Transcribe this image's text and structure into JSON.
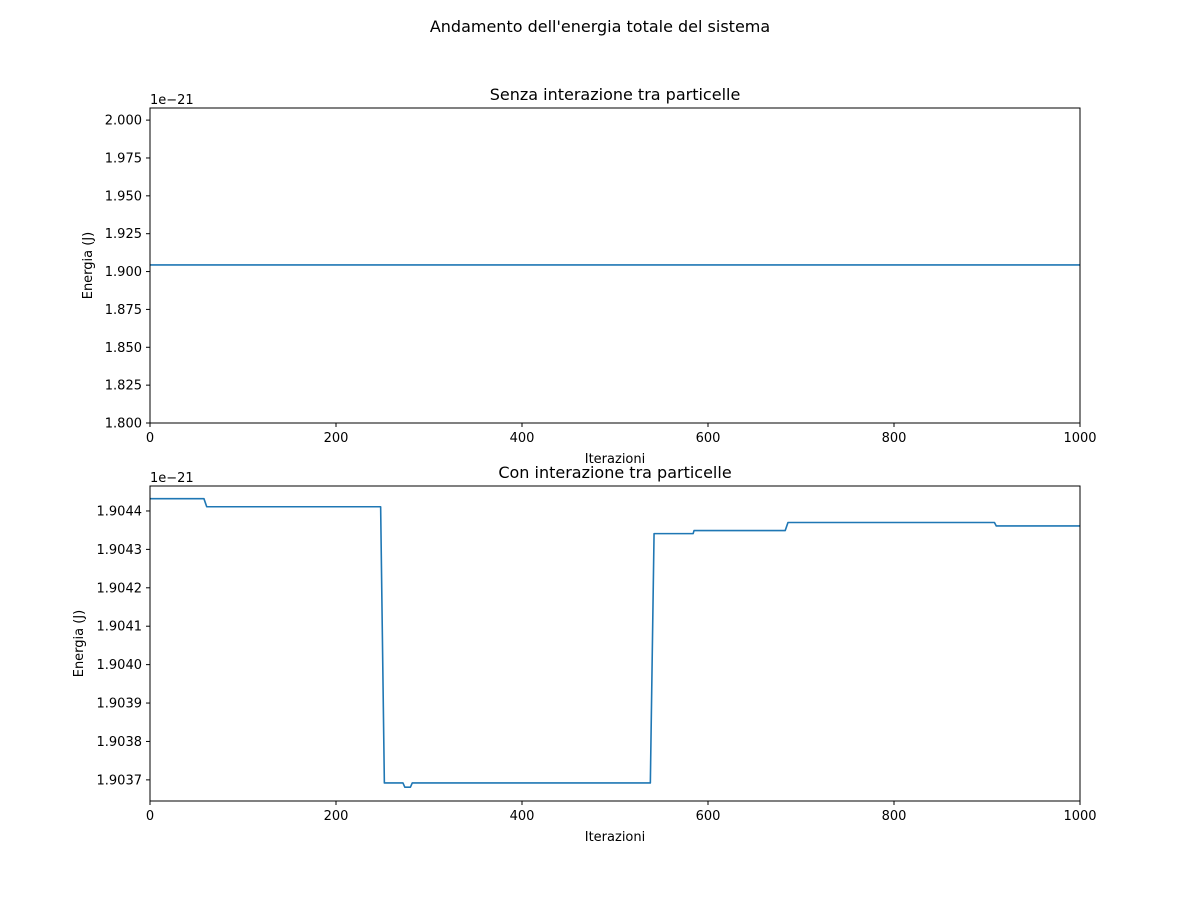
{
  "suptitle": "Andamento dell'energia totale del sistema",
  "chart_data": [
    {
      "type": "line",
      "title": "Senza interazione tra particelle",
      "xlabel": "Iterazioni",
      "ylabel": "Energia (J)",
      "offset_text": "1e−21",
      "xlim": [
        0,
        1000
      ],
      "ylim": [
        1.8,
        2.008
      ],
      "xticks": [
        0,
        200,
        400,
        600,
        800,
        1000
      ],
      "xtick_labels": [
        "0",
        "200",
        "400",
        "600",
        "800",
        "1000"
      ],
      "yticks": [
        1.8,
        1.825,
        1.85,
        1.875,
        1.9,
        1.925,
        1.95,
        1.975,
        2.0
      ],
      "ytick_labels": [
        "1.800",
        "1.825",
        "1.850",
        "1.875",
        "1.900",
        "1.925",
        "1.950",
        "1.975",
        "2.000"
      ],
      "grid": false,
      "line_color": "#1f77b4",
      "series": [
        {
          "x": [
            0,
            1000
          ],
          "y": [
            1.9044,
            1.9044
          ]
        }
      ]
    },
    {
      "type": "line",
      "title": "Con interazione tra particelle",
      "xlabel": "Iterazioni",
      "ylabel": "Energia (J)",
      "offset_text": "1e−21",
      "xlim": [
        0,
        1000
      ],
      "ylim": [
        1.903645,
        1.904465
      ],
      "xticks": [
        0,
        200,
        400,
        600,
        800,
        1000
      ],
      "xtick_labels": [
        "0",
        "200",
        "400",
        "600",
        "800",
        "1000"
      ],
      "yticks": [
        1.9037,
        1.9038,
        1.9039,
        1.904,
        1.9041,
        1.9042,
        1.9043,
        1.9044
      ],
      "ytick_labels": [
        "1.9037",
        "1.9038",
        "1.9039",
        "1.9040",
        "1.9041",
        "1.9042",
        "1.9043",
        "1.9044"
      ],
      "grid": false,
      "line_color": "#1f77b4",
      "series": [
        {
          "x": [
            0,
            58,
            61,
            248,
            252,
            272,
            274,
            280,
            282,
            538,
            542,
            584,
            585,
            683,
            686,
            908,
            910,
            1000
          ],
          "y": [
            1.904432,
            1.904432,
            1.904411,
            1.904411,
            1.903692,
            1.903692,
            1.903681,
            1.903681,
            1.903692,
            1.903692,
            1.904341,
            1.904341,
            1.904349,
            1.904349,
            1.90437,
            1.90437,
            1.904361,
            1.904361
          ]
        }
      ]
    }
  ]
}
